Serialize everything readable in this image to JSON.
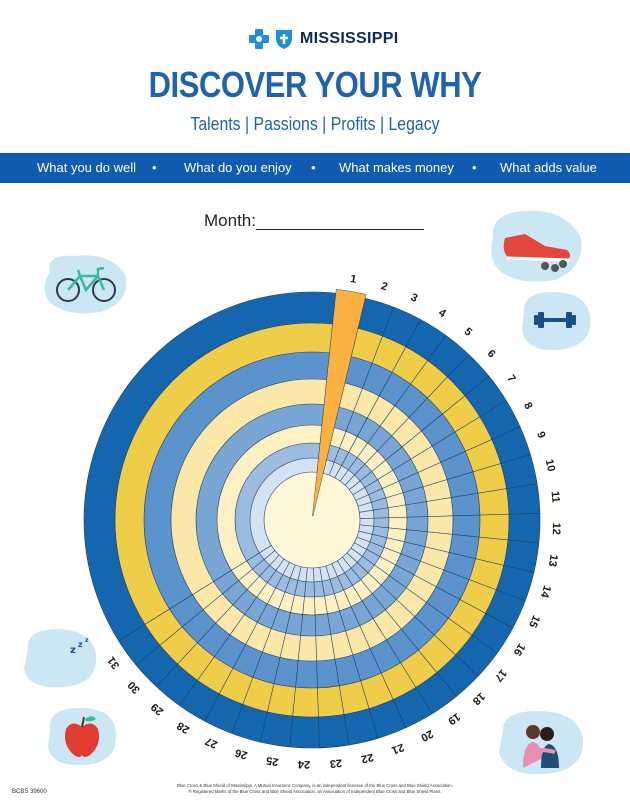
{
  "header": {
    "brand": "MISSISSIPPI",
    "title": "DISCOVER YOUR WHY",
    "subtitle": "Talents | Passions | Profits | Legacy"
  },
  "band": {
    "items": [
      "What you do well",
      "What do you enjoy",
      "What makes money",
      "What adds value"
    ],
    "separator": "•"
  },
  "month": {
    "label": "Month:"
  },
  "wheel": {
    "day_labels": [
      "1",
      "2",
      "3",
      "4",
      "5",
      "6",
      "7",
      "8",
      "9",
      "10",
      "11",
      "12",
      "13",
      "14",
      "15",
      "16",
      "17",
      "18",
      "19",
      "20",
      "21",
      "22",
      "23",
      "24",
      "25",
      "26",
      "27",
      "28",
      "29",
      "30",
      "31"
    ],
    "highlighted_day": "1",
    "ring_colors_outer_to_inner": [
      "#1466ae",
      "#f0cd48",
      "#5b93cc",
      "#fbe7a7",
      "#7aa6d6",
      "#fdf0c2",
      "#9cbbe0",
      "#d4e2f3"
    ],
    "center_color": "#fef7d8",
    "highlight_color": "#fbb040"
  },
  "icons": [
    "bicycle-icon",
    "sneaker-icon",
    "dumbbell-icon",
    "moon-sleep-icon",
    "apple-icon",
    "hug-icon"
  ],
  "footer": {
    "code": "BCBS 39600",
    "legal_line1": "Blue Cross & Blue Shield of Mississippi, A Mutual Insurance Company, is an independent licensee of the Blue Cross and Blue Shield Association.",
    "legal_line2": "® Registered Marks of the Blue Cross and Blue Shield Association, an Association of Independent Blue Cross and Blue Shield Plans."
  }
}
